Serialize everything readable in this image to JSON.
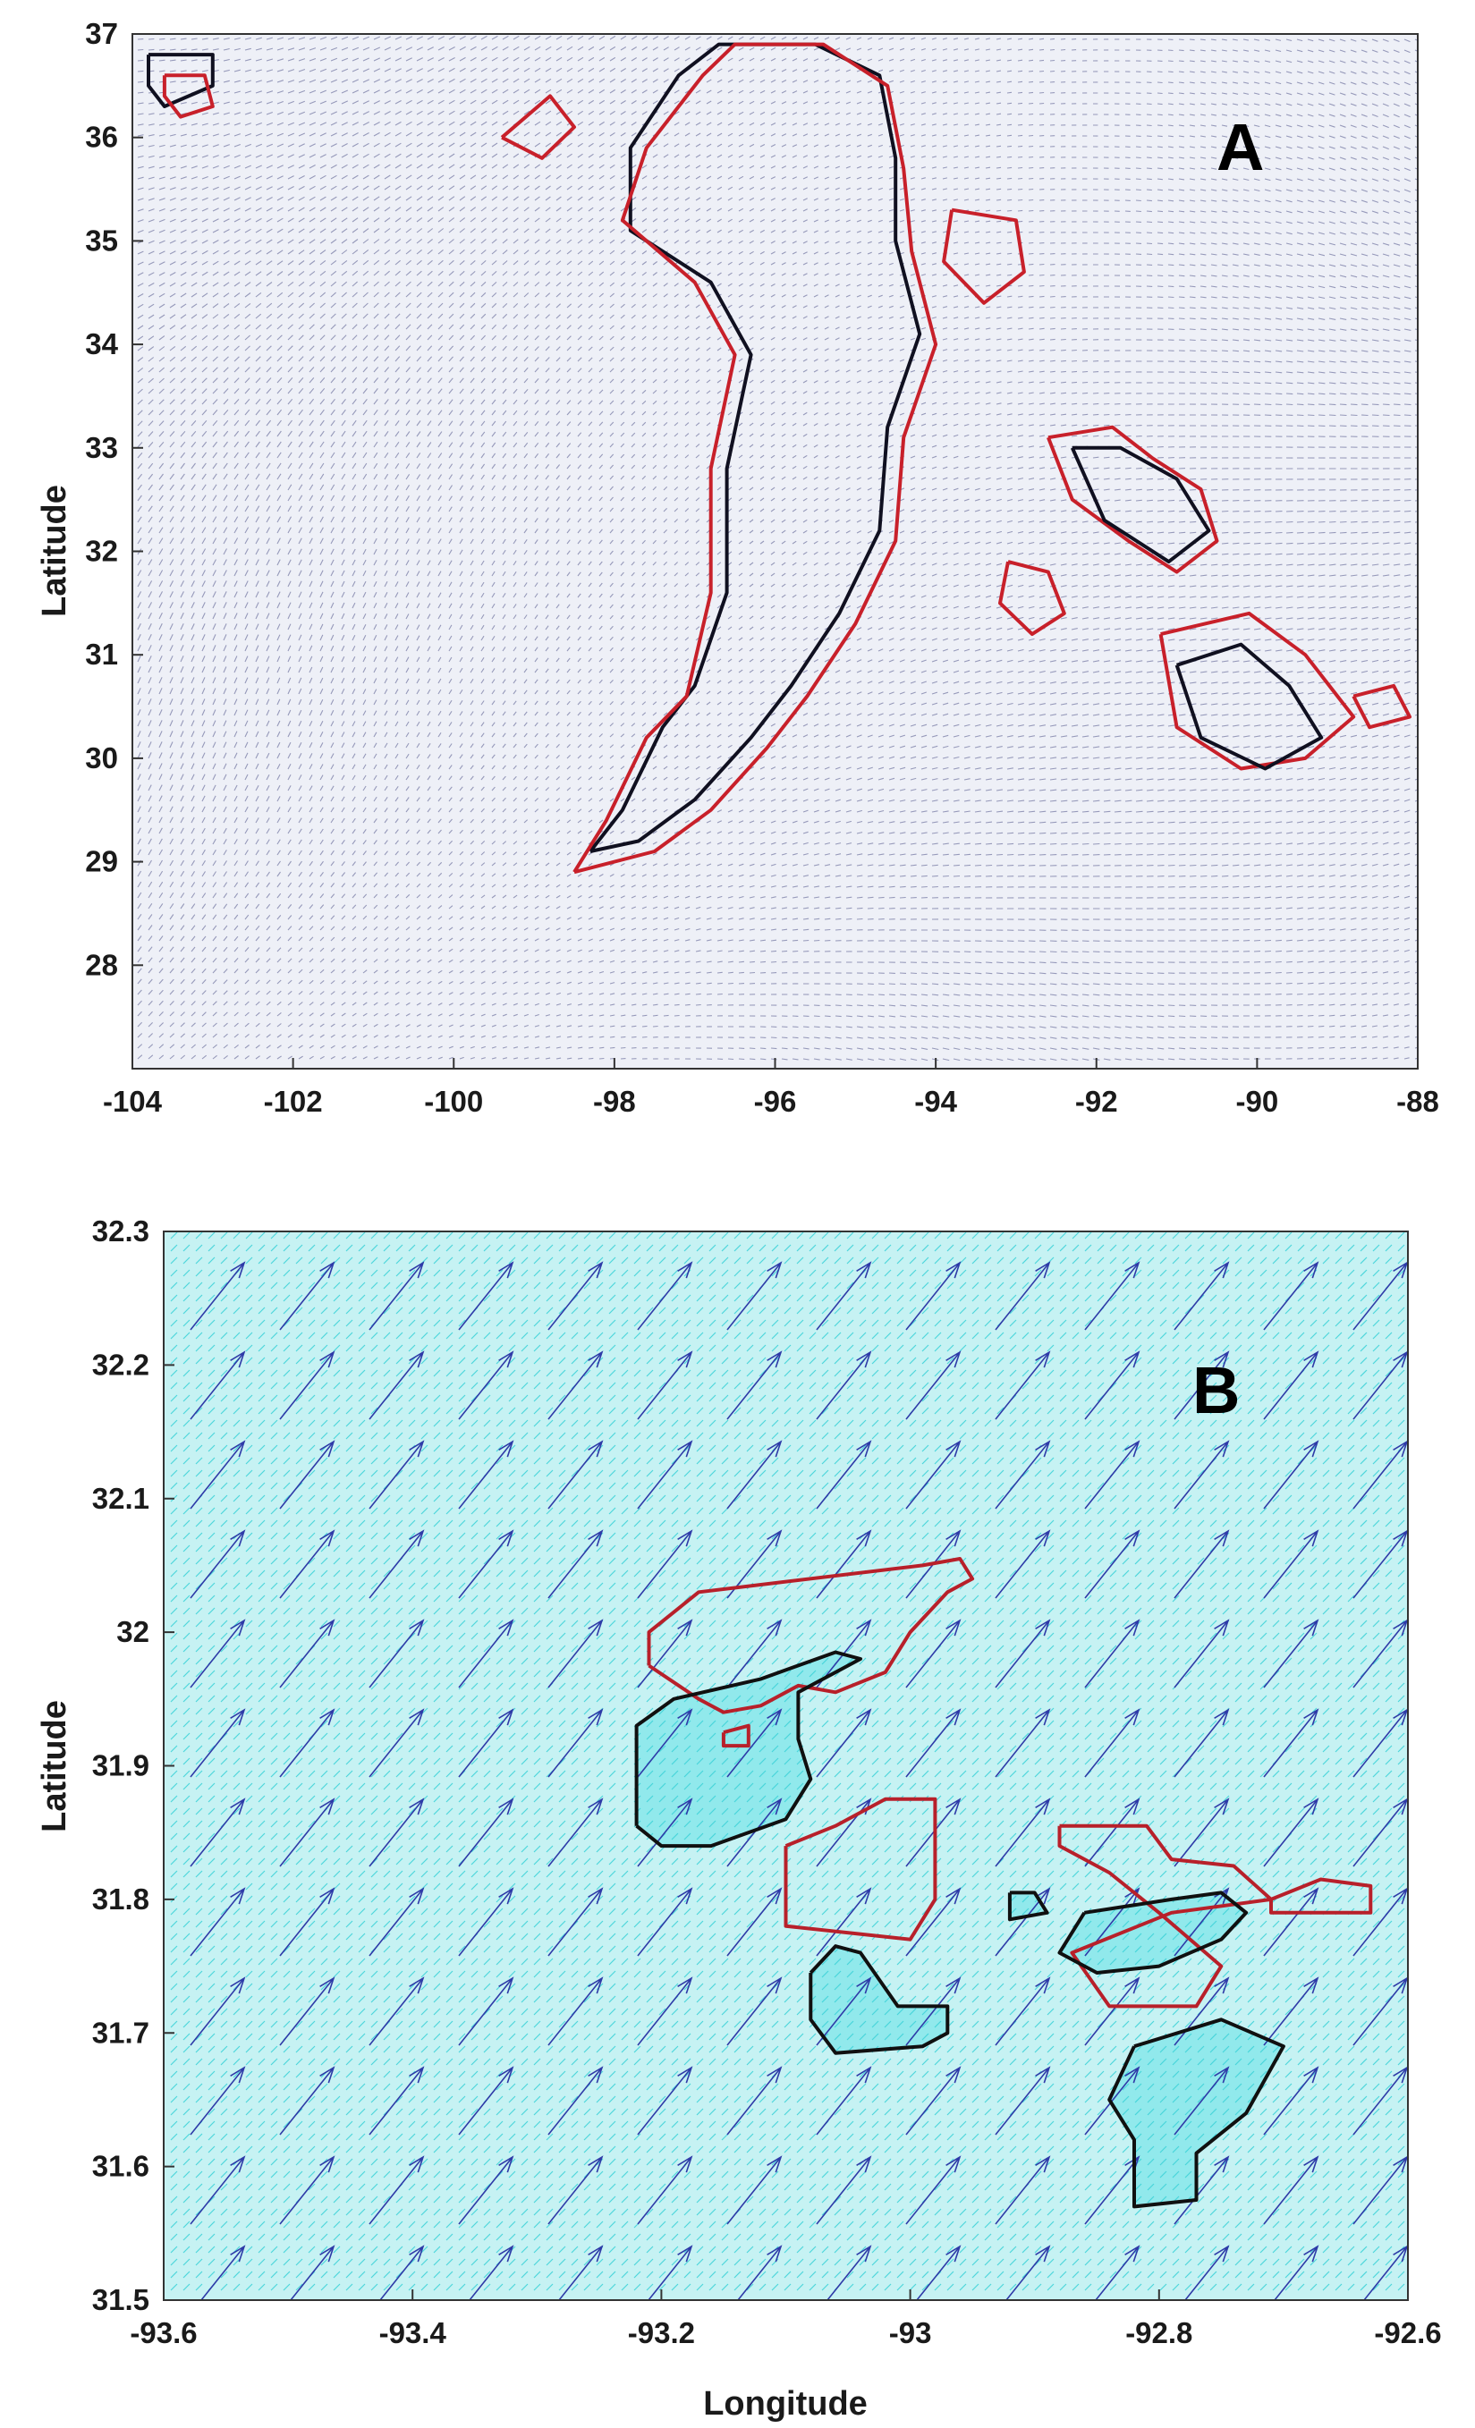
{
  "chart_data": [
    {
      "type": "quiver",
      "panel_label": "A",
      "xlabel": "",
      "ylabel": "Latitude",
      "xlim": [
        -104,
        -88
      ],
      "ylim": [
        27,
        37
      ],
      "xticks": [
        -104,
        -102,
        -100,
        -98,
        -96,
        -94,
        -92,
        -90,
        -88
      ],
      "xtick_labels": [
        "-104",
        "-102",
        "-100",
        "-98",
        "-96",
        "-94",
        "-92",
        "-90",
        "-88"
      ],
      "yticks": [
        28,
        29,
        30,
        31,
        32,
        33,
        34,
        35,
        36,
        37
      ],
      "ytick_labels": [
        "28",
        "29",
        "30",
        "31",
        "32",
        "33",
        "34",
        "35",
        "36",
        "37"
      ],
      "colors": {
        "vector": "#2b2f6e",
        "black_contour": "#101020",
        "red_contour": "#c8202a",
        "background": "#eef0f7"
      },
      "series": [
        {
          "style": "black_contour",
          "points": [
            [
              -98.3,
              29.1
            ],
            [
              -97.9,
              29.5
            ],
            [
              -97.4,
              30.3
            ],
            [
              -97.0,
              30.7
            ],
            [
              -96.6,
              31.6
            ],
            [
              -96.6,
              32.8
            ],
            [
              -96.3,
              33.9
            ],
            [
              -96.8,
              34.6
            ],
            [
              -97.8,
              35.1
            ],
            [
              -97.8,
              35.9
            ],
            [
              -97.2,
              36.6
            ],
            [
              -96.7,
              36.9
            ],
            [
              -95.5,
              36.9
            ],
            [
              -94.7,
              36.6
            ],
            [
              -94.5,
              35.8
            ],
            [
              -94.5,
              35.0
            ],
            [
              -94.2,
              34.1
            ],
            [
              -94.6,
              33.2
            ],
            [
              -94.7,
              32.2
            ],
            [
              -95.2,
              31.4
            ],
            [
              -95.8,
              30.7
            ],
            [
              -96.3,
              30.2
            ],
            [
              -97.0,
              29.6
            ],
            [
              -97.7,
              29.2
            ],
            [
              -98.3,
              29.1
            ]
          ]
        },
        {
          "style": "red_contour",
          "points": [
            [
              -98.5,
              28.9
            ],
            [
              -98.1,
              29.4
            ],
            [
              -97.6,
              30.2
            ],
            [
              -97.1,
              30.6
            ],
            [
              -96.8,
              31.6
            ],
            [
              -96.8,
              32.8
            ],
            [
              -96.5,
              33.9
            ],
            [
              -97.0,
              34.6
            ],
            [
              -97.9,
              35.2
            ],
            [
              -97.6,
              35.9
            ],
            [
              -96.9,
              36.6
            ],
            [
              -96.5,
              36.9
            ],
            [
              -95.4,
              36.9
            ],
            [
              -94.6,
              36.5
            ],
            [
              -94.4,
              35.7
            ],
            [
              -94.3,
              34.9
            ],
            [
              -94.0,
              34.0
            ],
            [
              -94.4,
              33.1
            ],
            [
              -94.5,
              32.1
            ],
            [
              -95.0,
              31.3
            ],
            [
              -95.6,
              30.6
            ],
            [
              -96.1,
              30.1
            ],
            [
              -96.8,
              29.5
            ],
            [
              -97.5,
              29.1
            ],
            [
              -98.5,
              28.9
            ]
          ]
        },
        {
          "style": "black_contour",
          "points": [
            [
              -103.8,
              36.8
            ],
            [
              -103.0,
              36.8
            ],
            [
              -103.0,
              36.5
            ],
            [
              -103.6,
              36.3
            ],
            [
              -103.8,
              36.5
            ],
            [
              -103.8,
              36.8
            ]
          ]
        },
        {
          "style": "red_contour",
          "points": [
            [
              -103.6,
              36.6
            ],
            [
              -103.1,
              36.6
            ],
            [
              -103.0,
              36.3
            ],
            [
              -103.4,
              36.2
            ],
            [
              -103.6,
              36.4
            ],
            [
              -103.6,
              36.6
            ]
          ]
        },
        {
          "style": "red_contour",
          "points": [
            [
              -99.4,
              36.0
            ],
            [
              -98.8,
              36.4
            ],
            [
              -98.5,
              36.1
            ],
            [
              -98.9,
              35.8
            ],
            [
              -99.4,
              36.0
            ]
          ]
        },
        {
          "style": "red_contour",
          "points": [
            [
              -92.6,
              33.1
            ],
            [
              -91.8,
              33.2
            ],
            [
              -91.3,
              32.9
            ],
            [
              -90.7,
              32.6
            ],
            [
              -90.5,
              32.1
            ],
            [
              -91.0,
              31.8
            ],
            [
              -91.6,
              32.1
            ],
            [
              -92.3,
              32.5
            ],
            [
              -92.6,
              33.1
            ]
          ]
        },
        {
          "style": "black_contour",
          "points": [
            [
              -92.3,
              33.0
            ],
            [
              -91.7,
              33.0
            ],
            [
              -91.0,
              32.7
            ],
            [
              -90.6,
              32.2
            ],
            [
              -91.1,
              31.9
            ],
            [
              -91.9,
              32.3
            ],
            [
              -92.3,
              33.0
            ]
          ]
        },
        {
          "style": "red_contour",
          "points": [
            [
              -91.2,
              31.2
            ],
            [
              -90.1,
              31.4
            ],
            [
              -89.4,
              31.0
            ],
            [
              -88.8,
              30.4
            ],
            [
              -89.4,
              30.0
            ],
            [
              -90.2,
              29.9
            ],
            [
              -91.0,
              30.3
            ],
            [
              -91.2,
              31.2
            ]
          ]
        },
        {
          "style": "black_contour",
          "points": [
            [
              -91.0,
              30.9
            ],
            [
              -90.2,
              31.1
            ],
            [
              -89.6,
              30.7
            ],
            [
              -89.2,
              30.2
            ],
            [
              -89.9,
              29.9
            ],
            [
              -90.7,
              30.2
            ],
            [
              -91.0,
              30.9
            ]
          ]
        },
        {
          "style": "red_contour",
          "points": [
            [
              -93.8,
              35.3
            ],
            [
              -93.0,
              35.2
            ],
            [
              -92.9,
              34.7
            ],
            [
              -93.4,
              34.4
            ],
            [
              -93.9,
              34.8
            ],
            [
              -93.8,
              35.3
            ]
          ]
        },
        {
          "style": "red_contour",
          "points": [
            [
              -93.1,
              31.9
            ],
            [
              -92.6,
              31.8
            ],
            [
              -92.4,
              31.4
            ],
            [
              -92.8,
              31.2
            ],
            [
              -93.2,
              31.5
            ],
            [
              -93.1,
              31.9
            ]
          ]
        },
        {
          "style": "red_contour",
          "points": [
            [
              -88.8,
              30.6
            ],
            [
              -88.3,
              30.7
            ],
            [
              -88.1,
              30.4
            ],
            [
              -88.6,
              30.3
            ],
            [
              -88.8,
              30.6
            ]
          ]
        }
      ]
    },
    {
      "type": "quiver",
      "panel_label": "B",
      "xlabel": "Longitude",
      "ylabel": "Latitude",
      "xlim": [
        -93.6,
        -92.6
      ],
      "ylim": [
        31.5,
        32.3
      ],
      "xticks": [
        -93.6,
        -93.4,
        -93.2,
        -93.0,
        -92.8,
        -92.6
      ],
      "xtick_labels": [
        "-93.6",
        "-93.4",
        "-93.2",
        "-93",
        "-92.8",
        "-92.6"
      ],
      "yticks": [
        31.5,
        31.6,
        31.7,
        31.8,
        31.9,
        32.0,
        32.1,
        32.2,
        32.3
      ],
      "ytick_labels": [
        "31.5",
        "31.6",
        "31.7",
        "31.8",
        "31.9",
        "32",
        "32.1",
        "32.2",
        "32.3"
      ],
      "colors": {
        "vector": "#2e3aa8",
        "fine_vector": "#3fd3d8",
        "background": "#c6f2f3",
        "black_contour": "#101010",
        "red_contour": "#b8202a",
        "fill": "#7fe6ea"
      },
      "series": [
        {
          "style": "red_contour",
          "points": [
            [
              -93.21,
              31.975
            ],
            [
              -93.21,
              32.0
            ],
            [
              -93.17,
              32.03
            ],
            [
              -92.99,
              32.05
            ],
            [
              -92.96,
              32.055
            ],
            [
              -92.95,
              32.04
            ],
            [
              -92.97,
              32.03
            ],
            [
              -93.0,
              32.0
            ],
            [
              -93.02,
              31.97
            ],
            [
              -93.06,
              31.955
            ],
            [
              -93.09,
              31.96
            ],
            [
              -93.12,
              31.945
            ],
            [
              -93.15,
              31.94
            ],
            [
              -93.17,
              31.95
            ],
            [
              -93.21,
              31.975
            ]
          ]
        },
        {
          "style": "black_contour",
          "points": [
            [
              -93.22,
              31.855
            ],
            [
              -93.22,
              31.93
            ],
            [
              -93.19,
              31.95
            ],
            [
              -93.12,
              31.965
            ],
            [
              -93.06,
              31.985
            ],
            [
              -93.04,
              31.98
            ],
            [
              -93.09,
              31.955
            ],
            [
              -93.09,
              31.92
            ],
            [
              -93.08,
              31.89
            ],
            [
              -93.1,
              31.86
            ],
            [
              -93.16,
              31.84
            ],
            [
              -93.2,
              31.84
            ],
            [
              -93.22,
              31.855
            ]
          ]
        },
        {
          "style": "red_contour",
          "points": [
            [
              -93.1,
              31.84
            ],
            [
              -93.1,
              31.78
            ],
            [
              -93.0,
              31.77
            ],
            [
              -92.98,
              31.8
            ],
            [
              -92.98,
              31.875
            ],
            [
              -93.02,
              31.875
            ],
            [
              -93.06,
              31.855
            ],
            [
              -93.1,
              31.84
            ]
          ]
        },
        {
          "style": "black_contour",
          "points": [
            [
              -93.08,
              31.745
            ],
            [
              -93.08,
              31.71
            ],
            [
              -93.06,
              31.685
            ],
            [
              -92.99,
              31.69
            ],
            [
              -92.97,
              31.7
            ],
            [
              -92.97,
              31.72
            ],
            [
              -93.01,
              31.72
            ],
            [
              -93.04,
              31.76
            ],
            [
              -93.06,
              31.765
            ],
            [
              -93.08,
              31.745
            ]
          ]
        },
        {
          "style": "red_contour",
          "points": [
            [
              -92.88,
              31.855
            ],
            [
              -92.81,
              31.855
            ],
            [
              -92.79,
              31.83
            ],
            [
              -92.74,
              31.825
            ],
            [
              -92.71,
              31.8
            ],
            [
              -92.71,
              31.79
            ],
            [
              -92.63,
              31.79
            ],
            [
              -92.63,
              31.81
            ],
            [
              -92.67,
              31.815
            ],
            [
              -92.71,
              31.8
            ],
            [
              -92.79,
              31.79
            ],
            [
              -92.87,
              31.76
            ],
            [
              -92.84,
              31.72
            ],
            [
              -92.77,
              31.72
            ],
            [
              -92.75,
              31.75
            ],
            [
              -92.8,
              31.79
            ],
            [
              -92.84,
              31.82
            ],
            [
              -92.88,
              31.84
            ],
            [
              -92.88,
              31.855
            ]
          ]
        },
        {
          "style": "black_contour",
          "points": [
            [
              -92.86,
              31.79
            ],
            [
              -92.79,
              31.8
            ],
            [
              -92.75,
              31.805
            ],
            [
              -92.73,
              31.79
            ],
            [
              -92.75,
              31.77
            ],
            [
              -92.8,
              31.75
            ],
            [
              -92.85,
              31.745
            ],
            [
              -92.88,
              31.76
            ],
            [
              -92.86,
              31.79
            ]
          ]
        },
        {
          "style": "black_contour",
          "points": [
            [
              -92.82,
              31.69
            ],
            [
              -92.75,
              31.71
            ],
            [
              -92.7,
              31.69
            ],
            [
              -92.73,
              31.64
            ],
            [
              -92.77,
              31.61
            ],
            [
              -92.77,
              31.575
            ],
            [
              -92.82,
              31.57
            ],
            [
              -92.82,
              31.62
            ],
            [
              -92.84,
              31.65
            ],
            [
              -92.82,
              31.69
            ]
          ]
        },
        {
          "style": "black_contour",
          "points": [
            [
              -92.92,
              31.805
            ],
            [
              -92.9,
              31.805
            ],
            [
              -92.89,
              31.79
            ],
            [
              -92.92,
              31.785
            ],
            [
              -92.92,
              31.805
            ]
          ]
        },
        {
          "style": "red_contour",
          "points": [
            [
              -93.15,
              31.925
            ],
            [
              -93.13,
              31.93
            ],
            [
              -93.13,
              31.915
            ],
            [
              -93.15,
              31.915
            ],
            [
              -93.15,
              31.925
            ]
          ]
        }
      ]
    }
  ]
}
